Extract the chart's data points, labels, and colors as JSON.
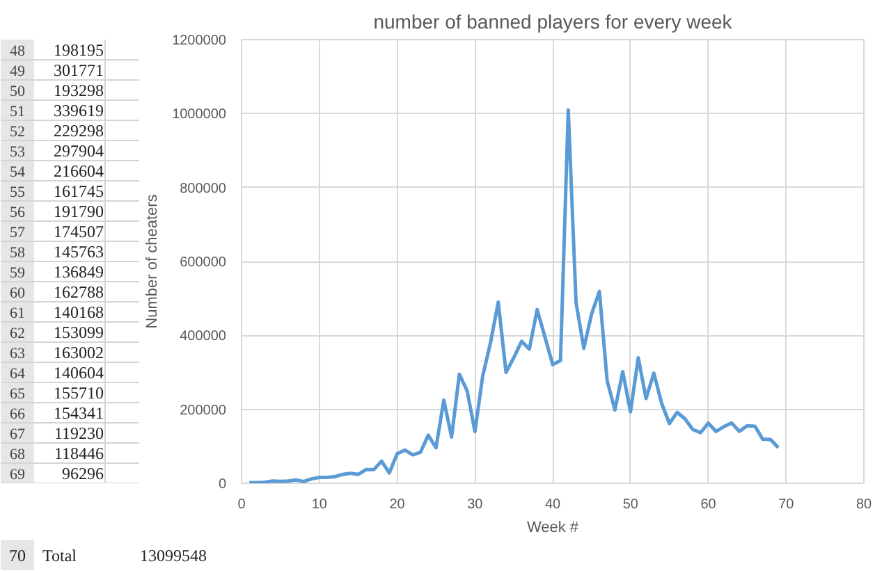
{
  "chart_data": {
    "type": "line",
    "title": "number of banned players for every week",
    "xlabel": "Week #",
    "ylabel": "Number of cheaters",
    "x": [
      1,
      2,
      3,
      4,
      5,
      6,
      7,
      8,
      9,
      10,
      11,
      12,
      13,
      14,
      15,
      16,
      17,
      18,
      19,
      20,
      21,
      22,
      23,
      24,
      25,
      26,
      27,
      28,
      29,
      30,
      31,
      32,
      33,
      34,
      35,
      36,
      37,
      38,
      39,
      40,
      41,
      42,
      43,
      44,
      45,
      46,
      47,
      48,
      49,
      50,
      51,
      52,
      53,
      54,
      55,
      56,
      57,
      58,
      59,
      60,
      61,
      62,
      63,
      64,
      65,
      66,
      67,
      68,
      69
    ],
    "series": [
      {
        "color": "#5b9bd5",
        "values": [
          2000,
          2000,
          3000,
          6000,
          5000,
          6000,
          9000,
          5000,
          12000,
          16000,
          16000,
          18000,
          24000,
          27000,
          24000,
          37000,
          37000,
          60000,
          28000,
          80000,
          90000,
          77000,
          84000,
          130000,
          96000,
          225000,
          125000,
          295000,
          250000,
          140000,
          290000,
          380000,
          490000,
          300000,
          340000,
          384000,
          363000,
          470000,
          396000,
          321000,
          332000,
          1010000,
          489000,
          365000,
          458000,
          519000,
          277000,
          198195,
          301771,
          193298,
          339619,
          229298,
          297904,
          216604,
          161745,
          191790,
          174507,
          145763,
          136849,
          162788,
          140168,
          153099,
          163002,
          140604,
          155710,
          154341,
          119230,
          118446,
          96296
        ]
      }
    ],
    "xlim": [
      0,
      80
    ],
    "xticks": [
      0,
      10,
      20,
      30,
      40,
      50,
      60,
      70,
      80
    ],
    "ylim": [
      0,
      1200000
    ],
    "yticks": [
      0,
      200000,
      400000,
      600000,
      800000,
      1000000,
      1200000
    ],
    "grid": true,
    "annotations": [
      "48",
      "198195",
      "49",
      "301771",
      "50",
      "193298",
      "51",
      "339619",
      "52",
      "229298",
      "53",
      "297904",
      "54",
      "216604",
      "55",
      "161745",
      "56",
      "191790",
      "57",
      "174507",
      "58",
      "145763",
      "59",
      "136849",
      "60",
      "162788",
      "61",
      "140168",
      "62",
      "153099",
      "63",
      "163002",
      "64",
      "140604",
      "65",
      "155710",
      "66",
      "154341",
      "67",
      "119230",
      "68",
      "118446",
      "69",
      "96296",
      "70",
      "Total",
      "13099548"
    ]
  }
}
